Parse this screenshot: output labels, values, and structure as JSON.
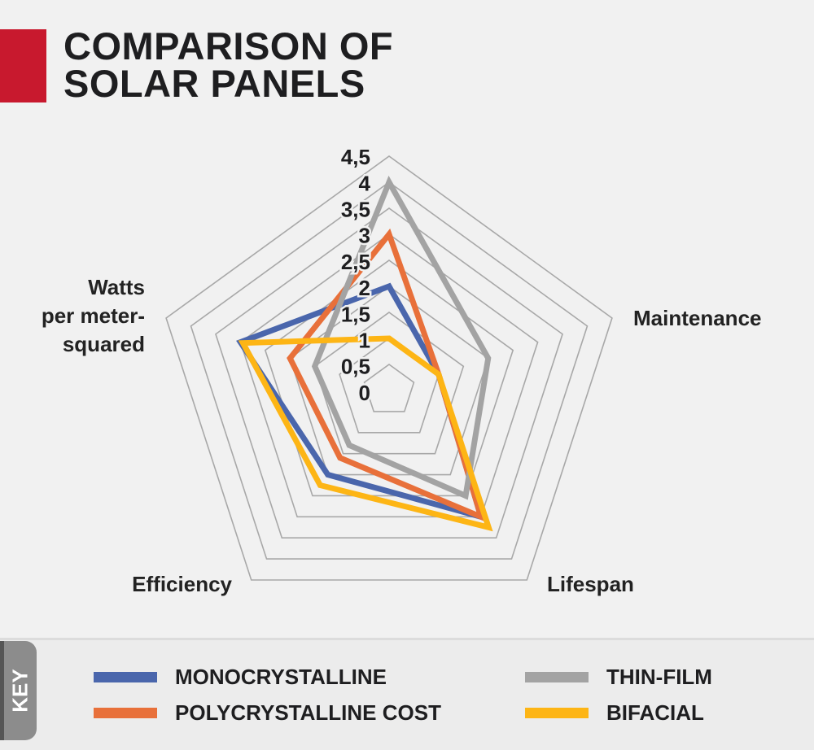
{
  "title_lines": [
    "COMPARISON OF",
    "SOLAR PANELS"
  ],
  "key_label": "KEY",
  "chart_data": {
    "type": "radar",
    "title": "COMPARISON OF SOLAR PANELS",
    "axes": [
      "",
      "Maintenance",
      "Lifespan",
      "Efficiency",
      "Watts per meter-squared"
    ],
    "axis_label_lines": [
      [],
      [
        "Maintenance"
      ],
      [
        "Lifespan"
      ],
      [
        "Efficiency"
      ],
      [
        "Watts",
        "per meter-",
        "squared"
      ]
    ],
    "tick_labels": [
      "0",
      "0,5",
      "1",
      "1,5",
      "2",
      "2,5",
      "3",
      "3,5",
      "4",
      "4,5"
    ],
    "range": [
      0,
      4.5
    ],
    "grid": true,
    "legend_position": "bottom",
    "series": [
      {
        "name": "MONOCRYSTALLINE",
        "color": "#4a66ac",
        "values": [
          2,
          1,
          3,
          2,
          3
        ]
      },
      {
        "name": "POLYCRYSTALLINE COST",
        "color": "#e8703a",
        "values": [
          3,
          1,
          3,
          1.6,
          2
        ]
      },
      {
        "name": "THIN-FILM",
        "color": "#a3a3a3",
        "values": [
          4,
          2,
          2.5,
          1.3,
          1.5
        ]
      },
      {
        "name": "BIFACIAL",
        "color": "#fdb515",
        "values": [
          1,
          1,
          3.25,
          2.25,
          2.95
        ]
      }
    ]
  }
}
